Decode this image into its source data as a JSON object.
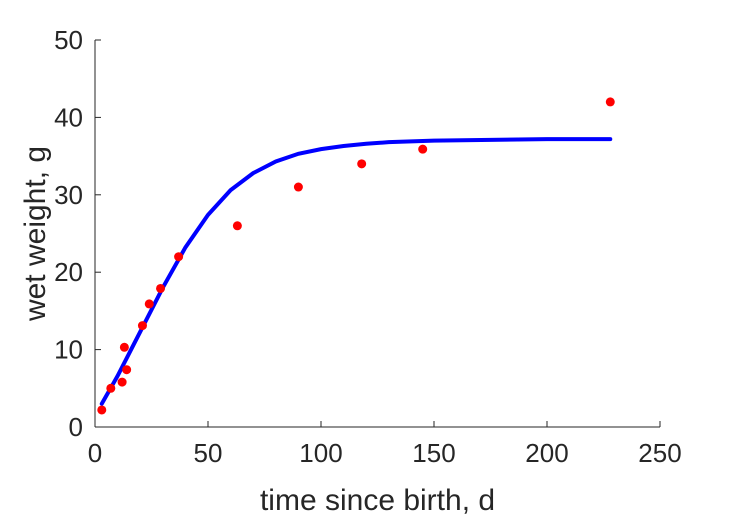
{
  "chart_data": {
    "type": "scatter",
    "title": "",
    "xlabel": "time since birth, d",
    "ylabel": "wet weight, g",
    "xlim": [
      0,
      250
    ],
    "ylim": [
      0,
      50
    ],
    "xticks": [
      0,
      50,
      100,
      150,
      200,
      250
    ],
    "yticks": [
      0,
      10,
      20,
      30,
      40,
      50
    ],
    "xtick_labels": [
      "0",
      "50",
      "100",
      "150",
      "200",
      "250"
    ],
    "ytick_labels": [
      "0",
      "10",
      "20",
      "30",
      "40",
      "50"
    ],
    "grid": false,
    "series": [
      {
        "kind": "points",
        "color": "#ff0000",
        "x": [
          3,
          7,
          12,
          13,
          14,
          21,
          24,
          29,
          37,
          63,
          90,
          118,
          145,
          228
        ],
        "y": [
          2.2,
          5.0,
          5.8,
          10.3,
          7.4,
          13.1,
          15.9,
          17.9,
          22.0,
          26.0,
          31.0,
          34.0,
          35.9,
          42.0
        ]
      },
      {
        "kind": "line",
        "color": "#0000ff",
        "x": [
          3,
          10,
          20,
          30,
          40,
          50,
          60,
          70,
          80,
          90,
          100,
          110,
          120,
          130,
          140,
          150,
          175,
          200,
          228
        ],
        "y": [
          3.0,
          6.6,
          12.3,
          18.0,
          23.2,
          27.4,
          30.6,
          32.8,
          34.3,
          35.3,
          35.9,
          36.3,
          36.6,
          36.8,
          36.9,
          37.0,
          37.1,
          37.2,
          37.2
        ]
      }
    ]
  }
}
